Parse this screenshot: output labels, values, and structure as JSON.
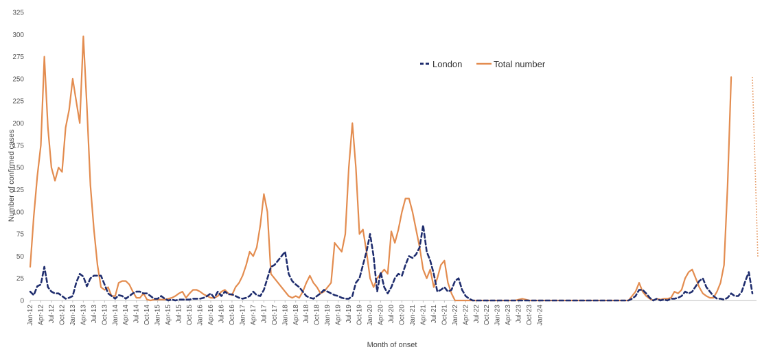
{
  "chart_data": {
    "type": "line",
    "xlabel": "Month of onset",
    "ylabel": "Number of confirmed cases",
    "ylim": [
      0,
      325
    ],
    "yticks": [
      0,
      25,
      50,
      75,
      100,
      125,
      150,
      175,
      200,
      225,
      250,
      275,
      300,
      325
    ],
    "grid": false,
    "legend_position": "top-right",
    "x_tick_labels": [
      "Jan-12",
      "Apr-12",
      "Jul-12",
      "Oct-12",
      "Jan-13",
      "Apr-13",
      "Jul-13",
      "Oct-13",
      "Jan-14",
      "Apr-14",
      "Jul-14",
      "Oct-14",
      "Jan-15",
      "Apr-15",
      "Jul-15",
      "Oct-15",
      "Jan-16",
      "Apr-16",
      "Jul-16",
      "Oct-16",
      "Jan-17",
      "Apr-17",
      "Jul-17",
      "Oct-17",
      "Jan-18",
      "Apr-18",
      "Jul-18",
      "Oct-18",
      "Jan-19",
      "Apr-19",
      "Jul-19",
      "Oct-19",
      "Jan-20",
      "Apr-20",
      "Jul-20",
      "Oct-20",
      "Jan-21",
      "Apr-21",
      "Jul-21",
      "Oct-21",
      "Jan-22",
      "Apr-22",
      "Jul-22",
      "Oct-22",
      "Jan-23",
      "Apr-23",
      "Jul-23",
      "Oct-23",
      "Jan-24"
    ],
    "series": [
      {
        "name": "London",
        "color": "#1f2d6e",
        "style": "dashed",
        "values": [
          10,
          6,
          16,
          18,
          38,
          15,
          10,
          8,
          8,
          5,
          2,
          3,
          5,
          20,
          30,
          27,
          16,
          25,
          28,
          28,
          28,
          18,
          8,
          5,
          2,
          6,
          5,
          2,
          5,
          8,
          10,
          10,
          8,
          8,
          5,
          2,
          2,
          5,
          2,
          0,
          1,
          0,
          1,
          1,
          1,
          1,
          2,
          2,
          2,
          3,
          5,
          8,
          3,
          10,
          5,
          10,
          7,
          7,
          5,
          3,
          2,
          3,
          5,
          10,
          6,
          5,
          12,
          25,
          38,
          40,
          45,
          50,
          55,
          30,
          22,
          18,
          15,
          10,
          5,
          3,
          2,
          5,
          8,
          12,
          10,
          8,
          6,
          5,
          3,
          2,
          2,
          5,
          20,
          25,
          40,
          55,
          75,
          50,
          10,
          32,
          15,
          8,
          15,
          25,
          30,
          28,
          40,
          50,
          48,
          52,
          60,
          85,
          55,
          45,
          30,
          10,
          12,
          15,
          10,
          12,
          22,
          25,
          12,
          5,
          2,
          0,
          0,
          0,
          0,
          0,
          0,
          0,
          0,
          0,
          0,
          0,
          0,
          0,
          0,
          0,
          0,
          0,
          0,
          0,
          0,
          0,
          0,
          0,
          0,
          0,
          0,
          0,
          0,
          0,
          0,
          0,
          0,
          0,
          0,
          0,
          0,
          0,
          0,
          0,
          0,
          0,
          0,
          0,
          0,
          0,
          2,
          5,
          12,
          12,
          8,
          3,
          0,
          2,
          0,
          1,
          0,
          2,
          2,
          3,
          5,
          10,
          8,
          10,
          16,
          22,
          25,
          15,
          10,
          5,
          2,
          2,
          1,
          3,
          8,
          5,
          5,
          10,
          22,
          32,
          8
        ]
      },
      {
        "name": "Total number",
        "color": "#e38c4f",
        "style": "solid",
        "values": [
          38,
          95,
          140,
          175,
          275,
          195,
          150,
          135,
          150,
          145,
          195,
          215,
          250,
          225,
          200,
          298,
          220,
          130,
          80,
          40,
          15,
          12,
          15,
          5,
          5,
          20,
          22,
          22,
          18,
          10,
          3,
          3,
          8,
          1,
          0,
          1,
          1,
          1,
          1,
          2,
          3,
          5,
          8,
          10,
          3,
          8,
          12,
          12,
          10,
          7,
          5,
          3,
          3,
          5,
          10,
          12,
          8,
          6,
          15,
          20,
          28,
          40,
          55,
          50,
          60,
          85,
          120,
          100,
          30,
          25,
          20,
          15,
          10,
          5,
          3,
          5,
          3,
          10,
          20,
          28,
          20,
          15,
          8,
          10,
          15,
          20,
          65,
          60,
          55,
          75,
          150,
          200,
          150,
          75,
          80,
          55,
          25,
          15,
          25,
          30,
          35,
          30,
          78,
          65,
          80,
          100,
          115,
          115,
          100,
          80,
          60,
          35,
          25,
          35,
          15,
          25,
          40,
          45,
          20,
          8,
          0,
          0,
          0,
          0,
          0,
          0,
          0,
          0,
          0,
          0,
          0,
          0,
          0,
          0,
          0,
          0,
          0,
          0,
          1,
          2,
          1,
          0,
          0,
          0,
          0,
          0,
          0,
          0,
          0,
          0,
          0,
          0,
          0,
          0,
          0,
          0,
          0,
          0,
          0,
          0,
          0,
          0,
          0,
          0,
          0,
          0,
          0,
          0,
          0,
          0,
          5,
          10,
          20,
          10,
          5,
          2,
          0,
          2,
          1,
          2,
          2,
          3,
          10,
          8,
          12,
          25,
          32,
          35,
          25,
          15,
          8,
          5,
          3,
          3,
          10,
          20,
          40,
          130,
          252
        ]
      }
    ],
    "trailing_segment": {
      "from_value": 252,
      "to_value": 48,
      "style": "dotted"
    }
  }
}
